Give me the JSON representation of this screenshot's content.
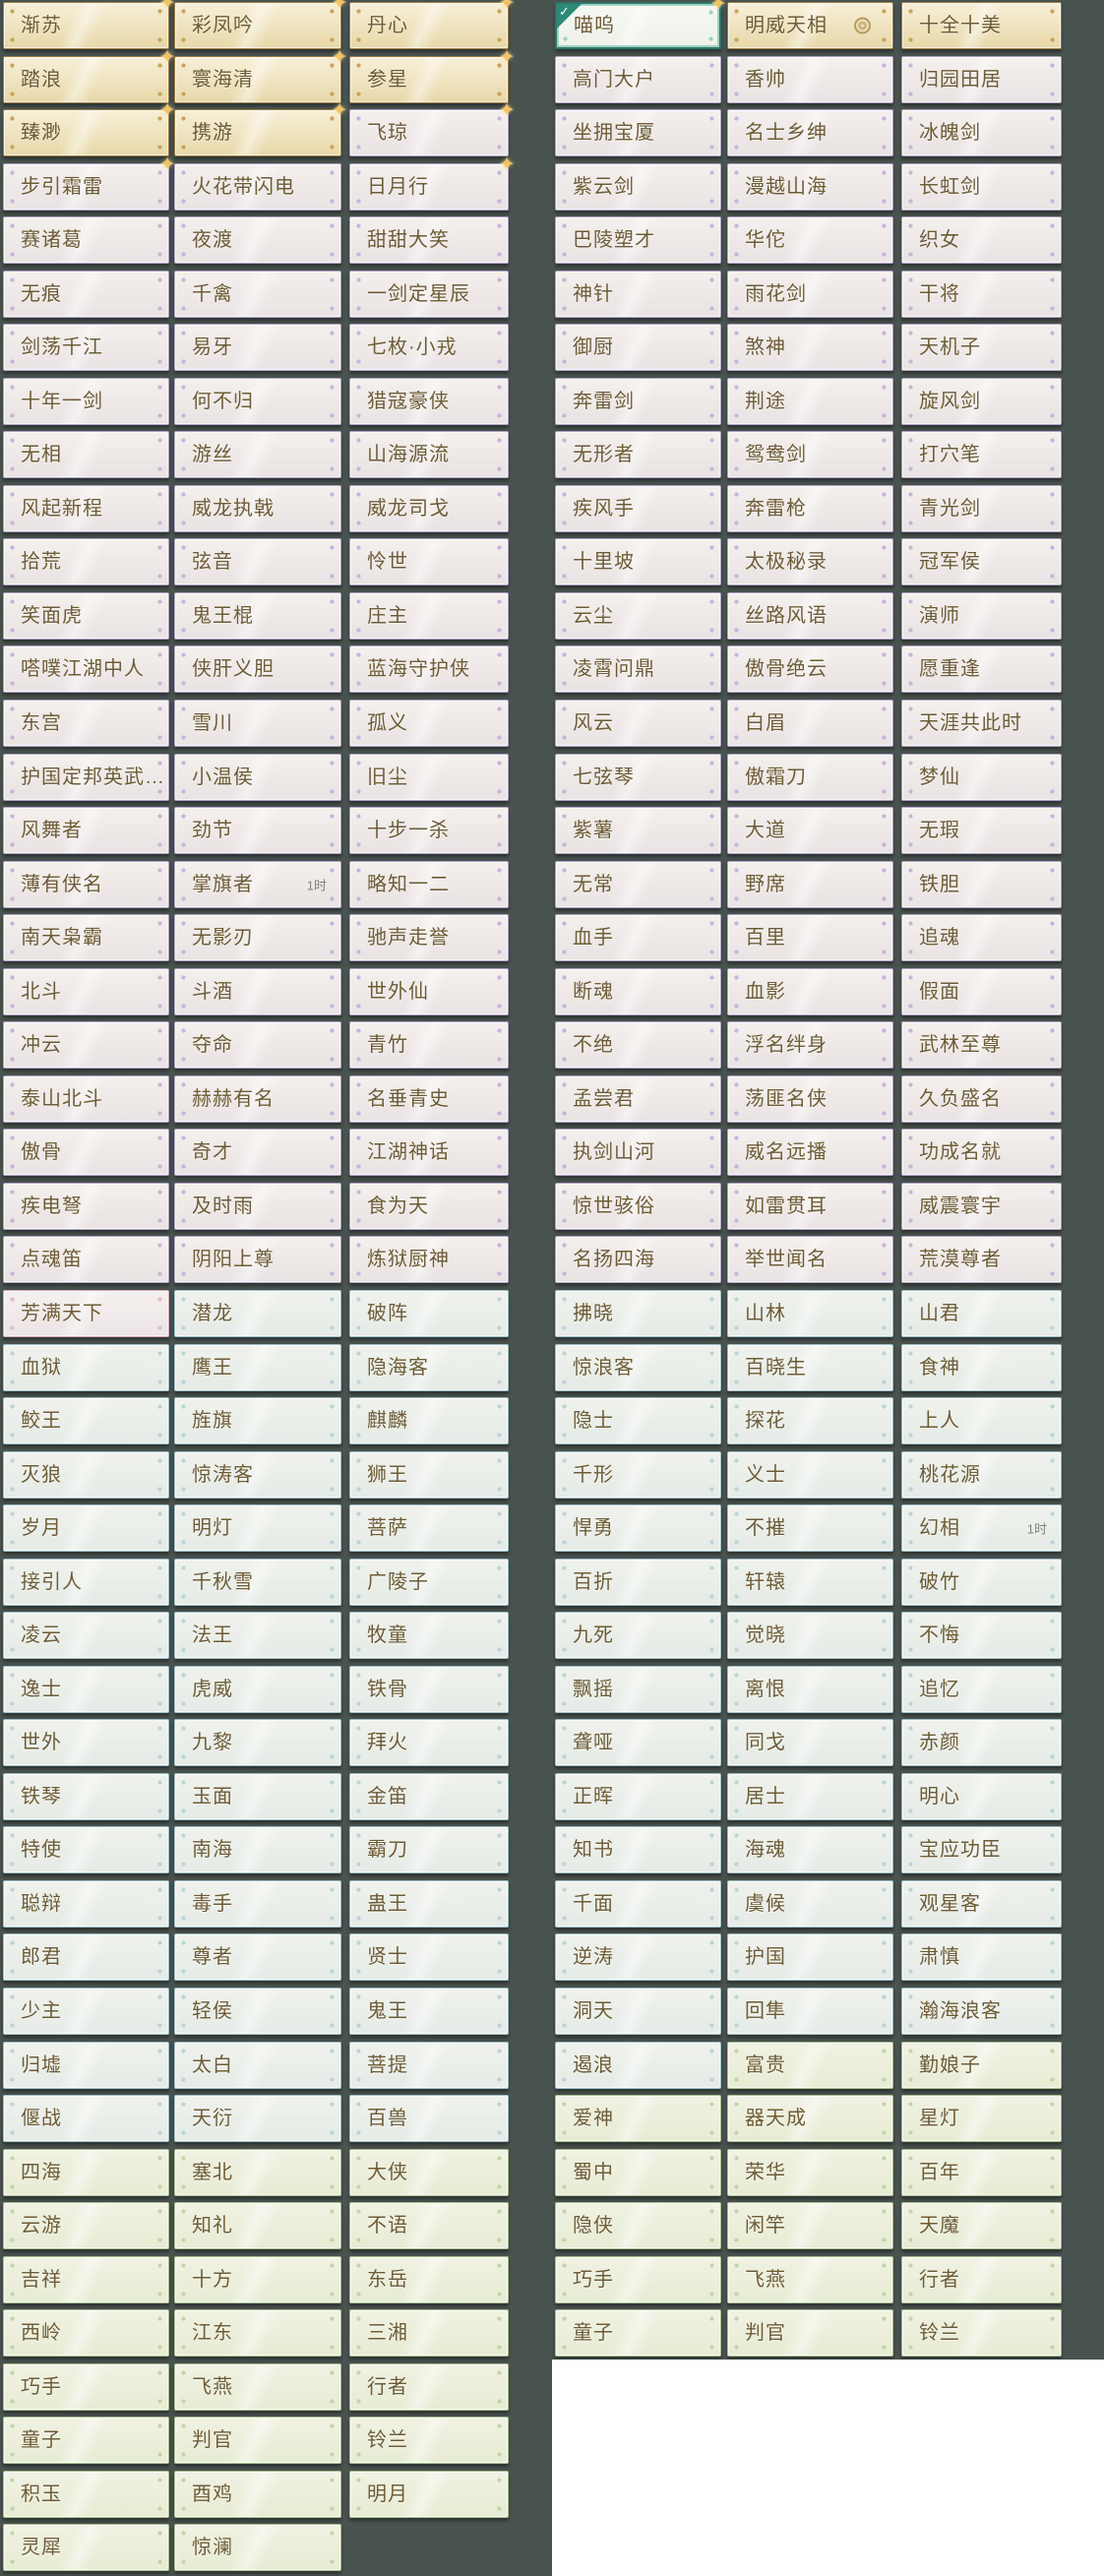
{
  "page": {
    "background": "#49534f",
    "blank_area_color": "#ffffff",
    "text_color": "#6d5c36",
    "timer_color": "#82837b",
    "sparkle_color": "#f2c363"
  },
  "tiers": {
    "gold": {
      "border": "#9c7d46",
      "fill_top": "#f7efd8",
      "fill_bottom": "#e8d8a9",
      "ornament": "#c8a35a"
    },
    "purple": {
      "border": "#b2a3c6",
      "fill_top": "#f4f0ed",
      "fill_bottom": "#e9e3e3",
      "ornament": "#c6b5da"
    },
    "blue": {
      "border": "#9fc0c9",
      "fill_top": "#f0f2ec",
      "fill_bottom": "#e5ebe7",
      "ornament": "#bad4da"
    },
    "green": {
      "border": "#abbf92",
      "fill_top": "#f1f2e3",
      "fill_bottom": "#e7ecd4",
      "ornament": "#c4d4a8"
    },
    "pink": {
      "border": "#d2a9bc",
      "fill_top": "#f5f0ee",
      "fill_bottom": "#ece4e6",
      "ornament": "#e0bccb"
    },
    "selected": {
      "border": "#2e7668",
      "inner": "#9ed2c2",
      "fill_top": "#f6f8f2",
      "fill_bottom": "#eef2ea",
      "check": "#2e8a78"
    }
  },
  "grid": {
    "rows": [
      {
        "tier": "gold",
        "cells": [
          {
            "label": "渐苏",
            "sparkle": true
          },
          {
            "label": "彩凤吟",
            "sparkle": true
          },
          {
            "label": "丹心",
            "sparkle": true
          },
          {
            "label": "喵呜",
            "tier": "selected",
            "selected": true,
            "sparkle": true
          },
          {
            "label": "明威天相",
            "seal": true
          },
          {
            "label": "十全十美"
          }
        ]
      },
      {
        "tier": "purple",
        "cells": [
          {
            "label": "踏浪",
            "tier": "gold",
            "sparkle": true
          },
          {
            "label": "寰海清",
            "tier": "gold",
            "sparkle": true
          },
          {
            "label": "参星",
            "tier": "gold",
            "sparkle": true
          },
          "高门大户",
          "香帅",
          "归园田居"
        ]
      },
      {
        "tier": "purple",
        "cells": [
          {
            "label": "臻渺",
            "tier": "gold",
            "sparkle": true
          },
          {
            "label": "携游",
            "tier": "gold",
            "sparkle": true
          },
          {
            "label": "飞琼",
            "sparkle": true
          },
          "坐拥宝厦",
          "名士乡绅",
          "冰魄剑"
        ]
      },
      {
        "tier": "purple",
        "cells": [
          {
            "label": "步引霜雷",
            "sparkle": true
          },
          "火花带闪电",
          {
            "label": "日月行",
            "sparkle": true
          },
          "紫云剑",
          "漫越山海",
          "长虹剑"
        ]
      },
      {
        "tier": "purple",
        "cells": [
          "赛诸葛",
          "夜渡",
          "甜甜大笑",
          "巴陵塑才",
          "华佗",
          "织女"
        ]
      },
      {
        "tier": "purple",
        "cells": [
          "无痕",
          "千禽",
          "一剑定星辰",
          "神针",
          "雨花剑",
          "干将"
        ]
      },
      {
        "tier": "purple",
        "cells": [
          "剑荡千江",
          "易牙",
          "七枚·小戎",
          "御厨",
          "煞神",
          "天机子"
        ]
      },
      {
        "tier": "purple",
        "cells": [
          "十年一剑",
          "何不归",
          "猎寇豪侠",
          "奔雷剑",
          "荆途",
          "旋风剑"
        ]
      },
      {
        "tier": "purple",
        "cells": [
          "无相",
          "游丝",
          "山海源流",
          "无形者",
          "鸳鸯剑",
          "打穴笔"
        ]
      },
      {
        "tier": "purple",
        "cells": [
          "风起新程",
          "威龙执戟",
          "威龙司戈",
          "疾风手",
          "奔雷枪",
          "青光剑"
        ]
      },
      {
        "tier": "purple",
        "cells": [
          "拾荒",
          "弦音",
          "怜世",
          "十里坡",
          "太极秘录",
          "冠军侯"
        ]
      },
      {
        "tier": "purple",
        "cells": [
          "笑面虎",
          "鬼王棍",
          "庄主",
          "云尘",
          "丝路风语",
          "演师"
        ]
      },
      {
        "tier": "purple",
        "cells": [
          "嗒噗江湖中人",
          "侠肝义胆",
          "蓝海守护侠",
          "凌霄问鼎",
          "傲骨绝云",
          "愿重逢"
        ]
      },
      {
        "tier": "purple",
        "cells": [
          "东宫",
          "雪川",
          "孤义",
          "风云",
          "白眉",
          "天涯共此时"
        ]
      },
      {
        "tier": "purple",
        "cells": [
          "护国定邦英武…",
          "小温侯",
          "旧尘",
          "七弦琴",
          "傲霜刀",
          "梦仙"
        ]
      },
      {
        "tier": "purple",
        "cells": [
          "风舞者",
          "劲节",
          "十步一杀",
          "紫薯",
          "大道",
          "无瑕"
        ]
      },
      {
        "tier": "purple",
        "cells": [
          "薄有侠名",
          {
            "label": "掌旗者",
            "timer": "1时"
          },
          "略知一二",
          "无常",
          "野席",
          "铁胆"
        ]
      },
      {
        "tier": "purple",
        "cells": [
          "南天枭霸",
          "无影刃",
          "驰声走誉",
          "血手",
          "百里",
          "追魂"
        ]
      },
      {
        "tier": "purple",
        "cells": [
          "北斗",
          "斗酒",
          "世外仙",
          "断魂",
          "血影",
          "假面"
        ]
      },
      {
        "tier": "purple",
        "cells": [
          "冲云",
          "夺命",
          "青竹",
          "不绝",
          "浮名绊身",
          "武林至尊"
        ]
      },
      {
        "tier": "purple",
        "cells": [
          "泰山北斗",
          "赫赫有名",
          "名垂青史",
          "孟尝君",
          "荡匪名侠",
          "久负盛名"
        ]
      },
      {
        "tier": "purple",
        "cells": [
          "傲骨",
          "奇才",
          "江湖神话",
          "执剑山河",
          "威名远播",
          "功成名就"
        ]
      },
      {
        "tier": "purple",
        "cells": [
          "疾电弩",
          "及时雨",
          "食为天",
          "惊世骇俗",
          "如雷贯耳",
          "威震寰宇"
        ]
      },
      {
        "tier": "purple",
        "cells": [
          "点魂笛",
          "阴阳上尊",
          "炼狱厨神",
          "名扬四海",
          "举世闻名",
          "荒漠尊者"
        ]
      },
      {
        "tier": "blue",
        "cells": [
          {
            "label": "芳满天下",
            "tier": "pink"
          },
          "潜龙",
          "破阵",
          "拂晓",
          "山林",
          "山君"
        ]
      },
      {
        "tier": "blue",
        "cells": [
          "血狱",
          "鹰王",
          "隐海客",
          "惊浪客",
          "百晓生",
          "食神"
        ]
      },
      {
        "tier": "blue",
        "cells": [
          "鲛王",
          "旌旗",
          "麒麟",
          "隐士",
          "探花",
          "上人"
        ]
      },
      {
        "tier": "blue",
        "cells": [
          "灭狼",
          "惊涛客",
          "狮王",
          "千形",
          "义士",
          "桃花源"
        ]
      },
      {
        "tier": "blue",
        "cells": [
          "岁月",
          "明灯",
          "菩萨",
          "悍勇",
          "不摧",
          {
            "label": "幻相",
            "timer": "1时"
          }
        ]
      },
      {
        "tier": "blue",
        "cells": [
          "接引人",
          "千秋雪",
          "广陵子",
          "百折",
          "轩辕",
          "破竹"
        ]
      },
      {
        "tier": "blue",
        "cells": [
          "凌云",
          "法王",
          "牧童",
          "九死",
          "觉晓",
          "不悔"
        ]
      },
      {
        "tier": "blue",
        "cells": [
          "逸士",
          "虎威",
          "铁骨",
          "飘摇",
          "离恨",
          "追忆"
        ]
      },
      {
        "tier": "blue",
        "cells": [
          "世外",
          "九黎",
          "拜火",
          "聋哑",
          "同戈",
          "赤颜"
        ]
      },
      {
        "tier": "blue",
        "cells": [
          "铁琴",
          "玉面",
          "金笛",
          "正晖",
          "居士",
          "明心"
        ]
      },
      {
        "tier": "blue",
        "cells": [
          "特使",
          "南海",
          "霸刀",
          "知书",
          "海魂",
          "宝应功臣"
        ]
      },
      {
        "tier": "blue",
        "cells": [
          "聪辩",
          "毒手",
          "蛊王",
          "千面",
          "虞候",
          "观星客"
        ]
      },
      {
        "tier": "blue",
        "cells": [
          "郎君",
          "尊者",
          "贤士",
          "逆涛",
          "护国",
          "肃慎"
        ]
      },
      {
        "tier": "blue",
        "cells": [
          "少主",
          "轻侯",
          "鬼王",
          "洞天",
          "回隼",
          "瀚海浪客"
        ]
      },
      {
        "tier": "blue",
        "cells": [
          "归墟",
          "太白",
          "菩提",
          "遏浪",
          {
            "label": "富贵",
            "tier": "green"
          },
          {
            "label": "勤娘子",
            "tier": "green"
          }
        ]
      },
      {
        "tier": "blue",
        "cells": [
          "偃战",
          "天衍",
          "百兽",
          {
            "label": "爱神",
            "tier": "green"
          },
          {
            "label": "器天成",
            "tier": "green"
          },
          {
            "label": "星灯",
            "tier": "green"
          }
        ]
      },
      {
        "tier": "green",
        "cells": [
          "四海",
          "塞北",
          "大侠",
          "蜀中",
          "荣华",
          "百年"
        ]
      },
      {
        "tier": "green",
        "cells": [
          "云游",
          "知礼",
          "不语",
          "隐侠",
          "闲竿",
          "天魔"
        ]
      },
      {
        "tier": "green",
        "cells": [
          "吉祥",
          "十方",
          "东岳",
          "巧手",
          "飞燕",
          "行者"
        ]
      },
      {
        "tier": "green",
        "cells": [
          "西岭",
          "江东",
          "三湘",
          "童子",
          "判官",
          "铃兰"
        ]
      },
      {
        "tier": "green",
        "cells": [
          "巧手",
          "飞燕",
          "行者"
        ]
      },
      {
        "tier": "green",
        "cells": [
          "童子",
          "判官",
          "铃兰"
        ]
      },
      {
        "tier": "green",
        "cells": [
          "积玉",
          "酉鸡",
          "明月"
        ]
      },
      {
        "tier": "green",
        "cells": [
          "灵犀",
          "惊澜"
        ]
      }
    ]
  }
}
